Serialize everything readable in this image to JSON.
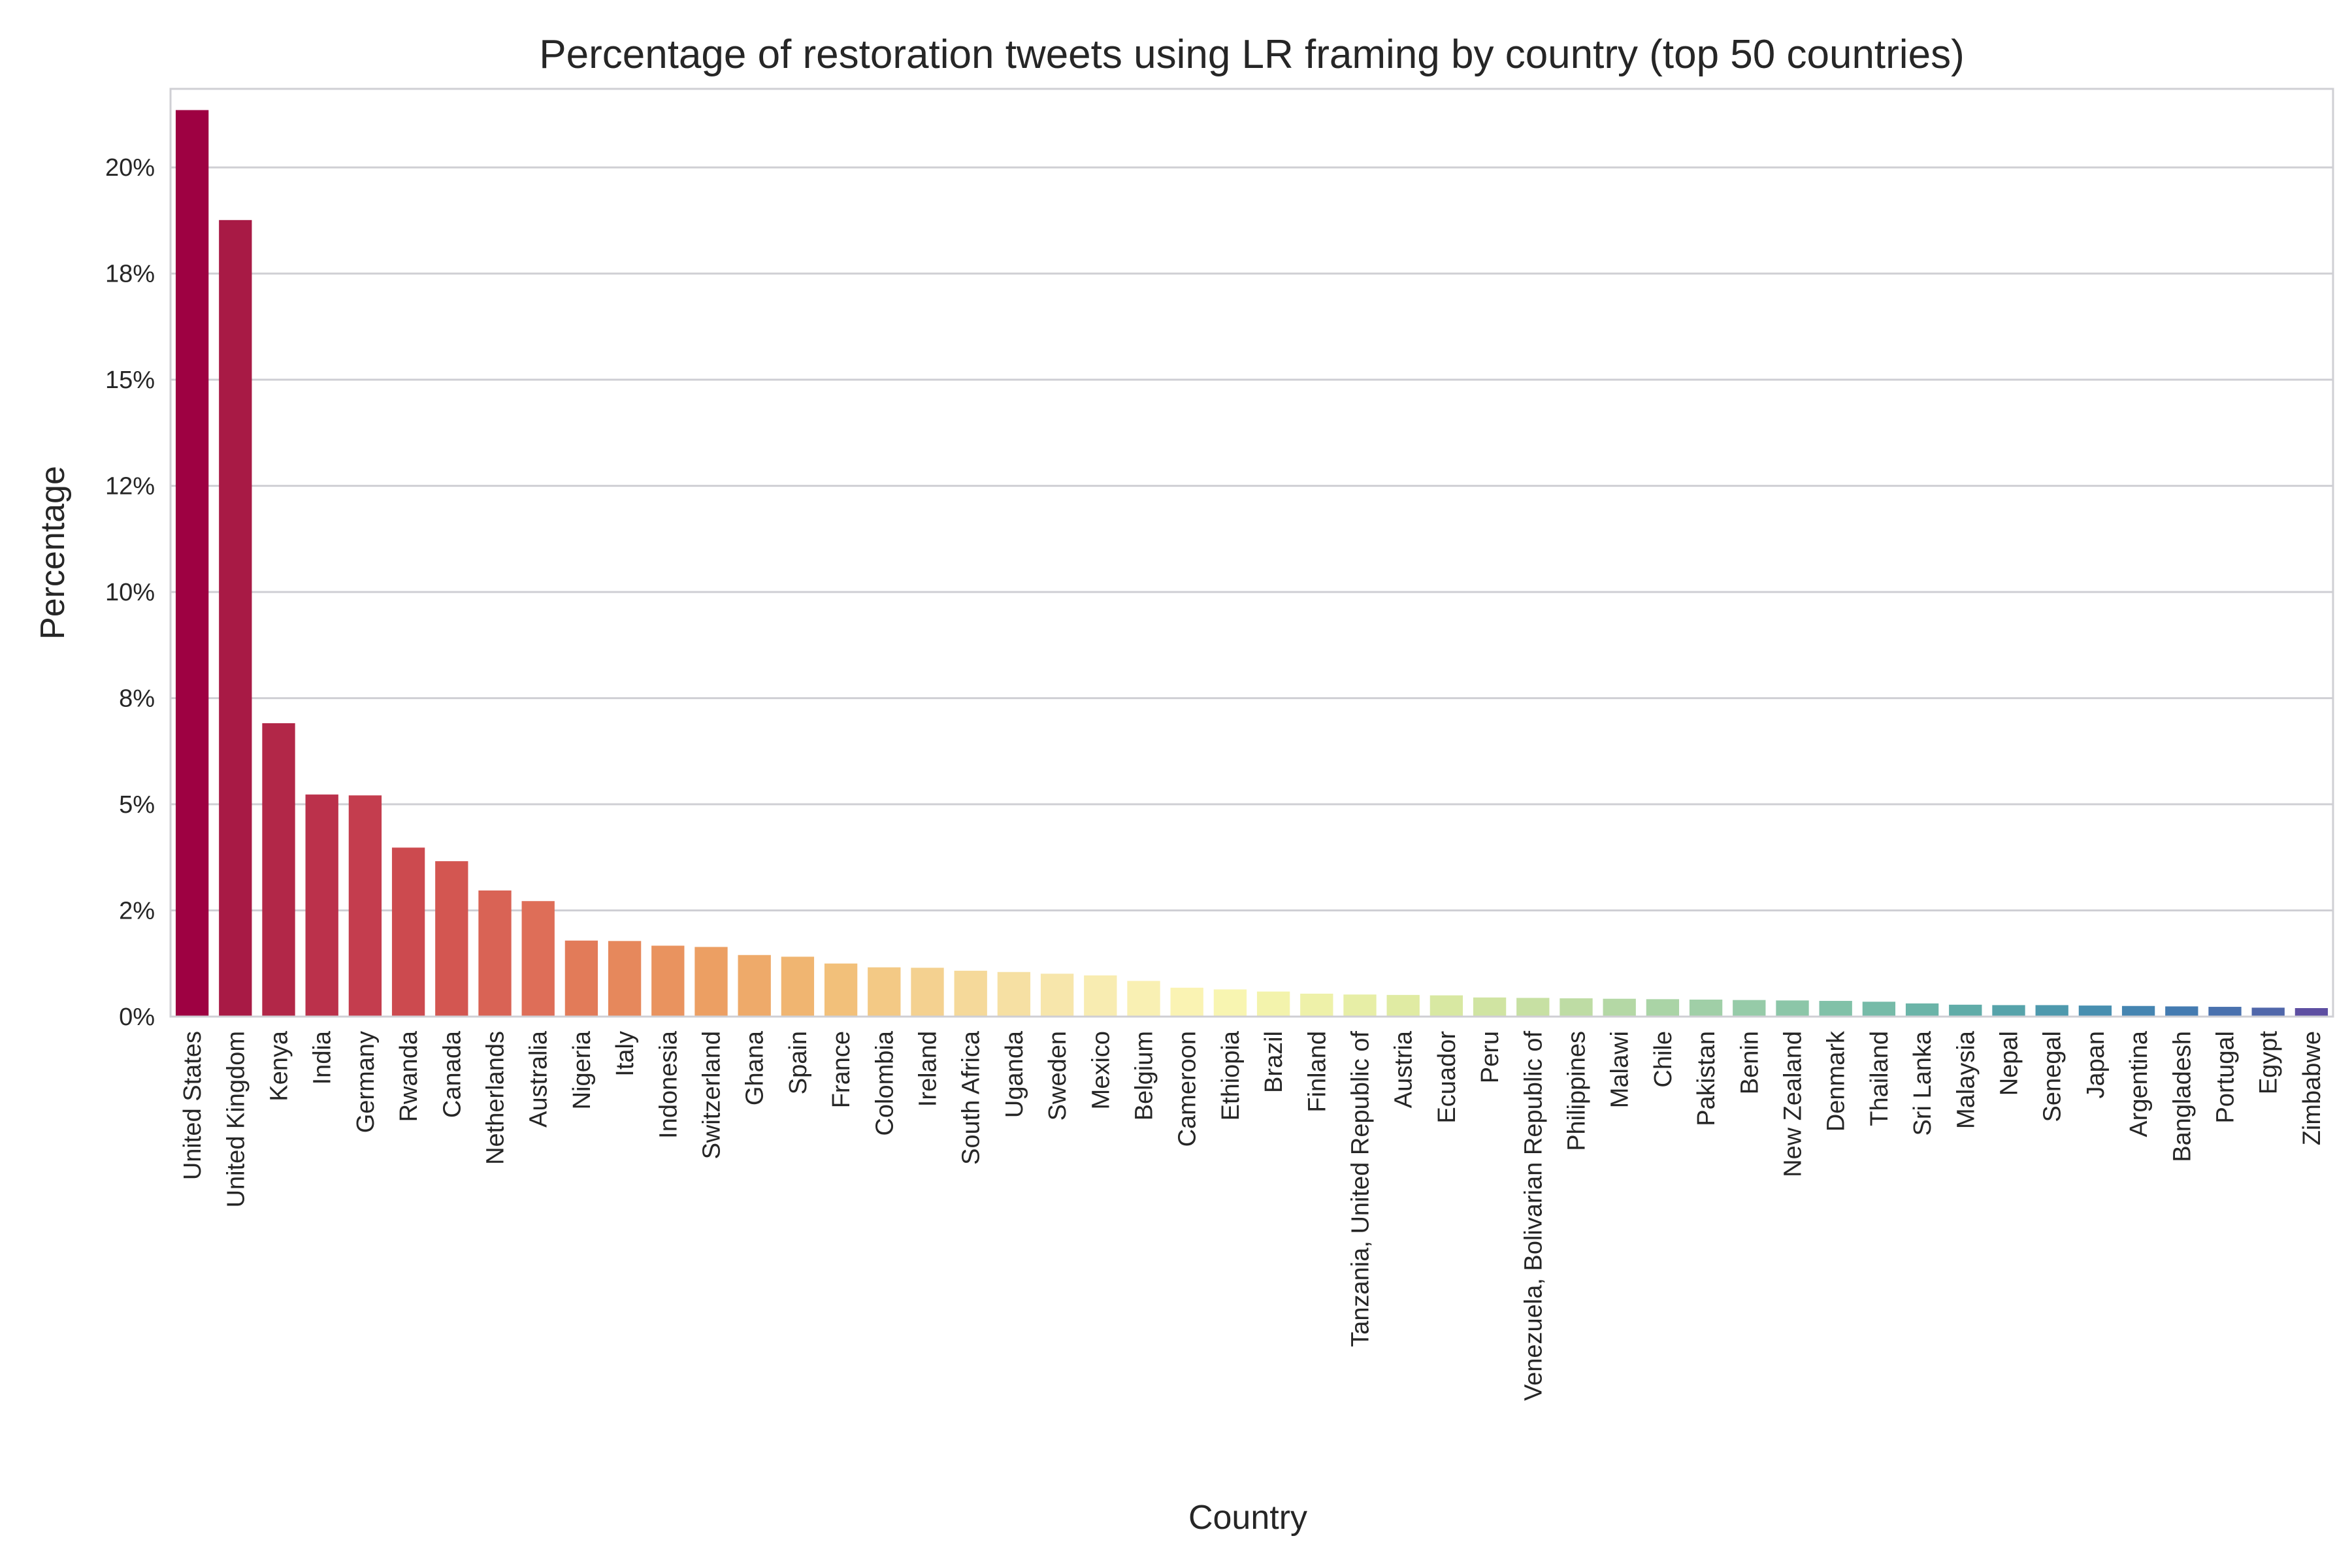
{
  "chart_data": {
    "type": "bar",
    "title": "Percentage of restoration tweets using LR framing by country (top 50 countries)",
    "xlabel": "Country",
    "ylabel": "Percentage",
    "ylim": [
      0,
      0.2185
    ],
    "yticks": [
      0,
      0.025,
      0.05,
      0.075,
      0.1,
      0.125,
      0.15,
      0.175,
      0.2
    ],
    "ytick_labels": [
      "0%",
      "2%",
      "5%",
      "8%",
      "10%",
      "12%",
      "15%",
      "18%",
      "20%"
    ],
    "grid": true,
    "categories": [
      "United States",
      "United Kingdom",
      "Kenya",
      "India",
      "Germany",
      "Rwanda",
      "Canada",
      "Netherlands",
      "Australia",
      "Nigeria",
      "Italy",
      "Indonesia",
      "Switzerland",
      "Ghana",
      "Spain",
      "France",
      "Colombia",
      "Ireland",
      "South Africa",
      "Uganda",
      "Sweden",
      "Mexico",
      "Belgium",
      "Cameroon",
      "Ethiopia",
      "Brazil",
      "Finland",
      "Tanzania, United Republic of",
      "Austria",
      "Ecuador",
      "Peru",
      "Venezuela, Bolivarian Republic of",
      "Philippines",
      "Malawi",
      "Chile",
      "Pakistan",
      "Benin",
      "New Zealand",
      "Denmark",
      "Thailand",
      "Sri Lanka",
      "Malaysia",
      "Nepal",
      "Senegal",
      "Japan",
      "Argentina",
      "Bangladesh",
      "Portugal",
      "Egypt",
      "Zimbabwe"
    ],
    "values": [
      0.2135,
      0.1876,
      0.0691,
      0.0523,
      0.0521,
      0.0398,
      0.0366,
      0.0297,
      0.0272,
      0.0179,
      0.0178,
      0.0167,
      0.0164,
      0.0145,
      0.0141,
      0.0125,
      0.0116,
      0.0115,
      0.0108,
      0.0105,
      0.0101,
      0.0097,
      0.0084,
      0.0068,
      0.0064,
      0.0059,
      0.0054,
      0.0052,
      0.0051,
      0.005,
      0.0045,
      0.0044,
      0.0043,
      0.0042,
      0.0041,
      0.004,
      0.0039,
      0.0038,
      0.0037,
      0.0035,
      0.0031,
      0.0028,
      0.0027,
      0.0027,
      0.0026,
      0.0025,
      0.0024,
      0.0023,
      0.0021,
      0.002
    ],
    "colors": [
      "#9e0142",
      "#a81a45",
      "#b22748",
      "#bb314b",
      "#c43d4e",
      "#cc4a4f",
      "#d35651",
      "#d96355",
      "#de6e58",
      "#e27b59",
      "#e6885c",
      "#e9935f",
      "#ec9f63",
      "#eeaa6a",
      "#f0b571",
      "#f2c07a",
      "#f3c985",
      "#f4d190",
      "#f5d99a",
      "#f6e0a3",
      "#f7e6ab",
      "#f8ecb1",
      "#f9f0b3",
      "#faf3b3",
      "#f8f5b1",
      "#f3f3ac",
      "#eef1a9",
      "#e7eea6",
      "#e0eba3",
      "#d8e8a2",
      "#d0e4a2",
      "#c7e0a3",
      "#bedca4",
      "#b4d8a5",
      "#aad4a6",
      "#a0cfa7",
      "#96cba8",
      "#8cc6a8",
      "#81c1a8",
      "#76bba8",
      "#6bb4a8",
      "#60aca8",
      "#56a3aa",
      "#4e99ad",
      "#488fb0",
      "#4585b1",
      "#447bb1",
      "#4971ae",
      "#5067aa",
      "#5e4fa2"
    ]
  }
}
